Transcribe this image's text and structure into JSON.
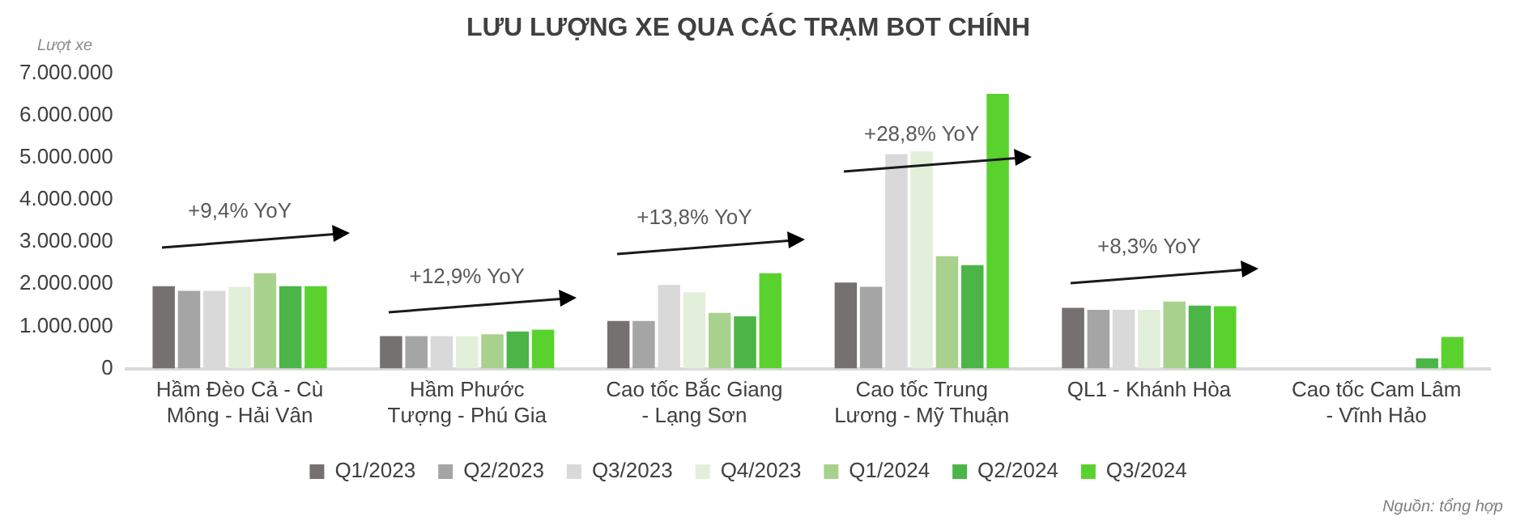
{
  "chart_data": {
    "type": "bar",
    "title": "LƯU LƯỢNG XE QUA CÁC TRẠM BOT CHÍNH",
    "ylabel": "Lượt xe",
    "categories": [
      "Hầm Đèo Cả - Cù Mông - Hải Vân",
      "Hầm Phước Tượng - Phú Gia",
      "Cao tốc Bắc Giang - Lạng Sơn",
      "Cao tốc Trung Lương - Mỹ Thuận",
      "QL1 - Khánh Hòa",
      "Cao tốc Cam Lâm - Vĩnh Hảo"
    ],
    "series": [
      {
        "name": "Q1/2023",
        "color": "#767171",
        "values": [
          1950000,
          770000,
          1130000,
          2040000,
          1440000,
          null
        ]
      },
      {
        "name": "Q2/2023",
        "color": "#a5a5a5",
        "values": [
          1840000,
          770000,
          1130000,
          1940000,
          1390000,
          null
        ]
      },
      {
        "name": "Q3/2023",
        "color": "#d9d9d9",
        "values": [
          1840000,
          770000,
          1980000,
          5080000,
          1390000,
          null
        ]
      },
      {
        "name": "Q4/2023",
        "color": "#e2efda",
        "values": [
          1940000,
          770000,
          1810000,
          5150000,
          1390000,
          null
        ]
      },
      {
        "name": "Q1/2024",
        "color": "#a9d18e",
        "values": [
          2260000,
          810000,
          1320000,
          2660000,
          1590000,
          null
        ]
      },
      {
        "name": "Q2/2024",
        "color": "#4cb547",
        "values": [
          1950000,
          880000,
          1240000,
          2450000,
          1490000,
          240000
        ]
      },
      {
        "name": "Q3/2024",
        "color": "#5ad22e",
        "values": [
          1950000,
          920000,
          2260000,
          6510000,
          1480000,
          750000
        ]
      }
    ],
    "ylim": [
      0,
      7000000
    ],
    "yticks": [
      {
        "value": 0,
        "label": "0"
      },
      {
        "value": 1000000,
        "label": "1.000.000"
      },
      {
        "value": 2000000,
        "label": "2.000.000"
      },
      {
        "value": 3000000,
        "label": "3.000.000"
      },
      {
        "value": 4000000,
        "label": "4.000.000"
      },
      {
        "value": 5000000,
        "label": "5.000.000"
      },
      {
        "value": 6000000,
        "label": "6.000.000"
      },
      {
        "value": 7000000,
        "label": "7.000.000"
      }
    ],
    "grid": false,
    "legend": "bottom",
    "annotations": [
      "+9,4% YoY",
      "+12,9% YoY",
      "+13,8% YoY",
      "+28,8% YoY",
      "+8,3% YoY",
      "Nguồn: tổng hợp"
    ]
  }
}
